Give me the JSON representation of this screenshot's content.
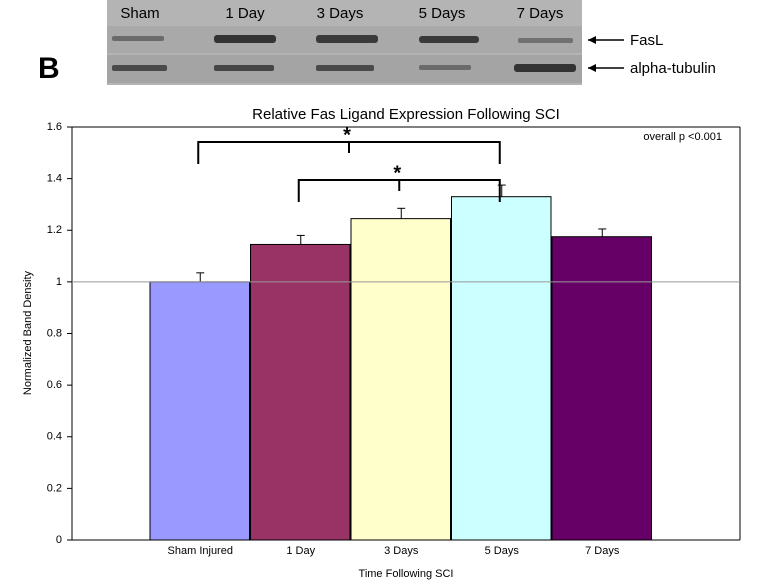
{
  "blot": {
    "lanes": [
      "Sham",
      "1 Day",
      "3 Days",
      "5 Days",
      "7 Days"
    ],
    "rows": [
      "FasL",
      "alpha-tubulin"
    ]
  },
  "panel_label": "B",
  "chart_data": {
    "type": "bar",
    "title": "Relative Fas Ligand Expression Following SCI",
    "x_label": "Time Following SCI",
    "y_label": "Normalized Band Density",
    "categories": [
      "Sham Injured",
      "1 Day",
      "3 Days",
      "5 Days",
      "7 Days"
    ],
    "values": [
      1.0,
      1.145,
      1.245,
      1.33,
      1.175
    ],
    "errors": [
      0.035,
      0.035,
      0.04,
      0.045,
      0.03
    ],
    "colors": [
      "#9999ff",
      "#993366",
      "#ffffcc",
      "#ccffff",
      "#660066"
    ],
    "ylim": [
      0,
      1.6
    ],
    "yticks": [
      0,
      0.2,
      0.4,
      0.6,
      0.8,
      1,
      1.2,
      1.4,
      1.6
    ],
    "reference_line": 1,
    "annotations": [
      {
        "text": "*",
        "between": [
          "Sham Injured",
          "5 Days"
        ]
      },
      {
        "text": "*",
        "between": [
          "1 Day",
          "5 Days"
        ]
      }
    ],
    "note": "overall p <0.001"
  }
}
